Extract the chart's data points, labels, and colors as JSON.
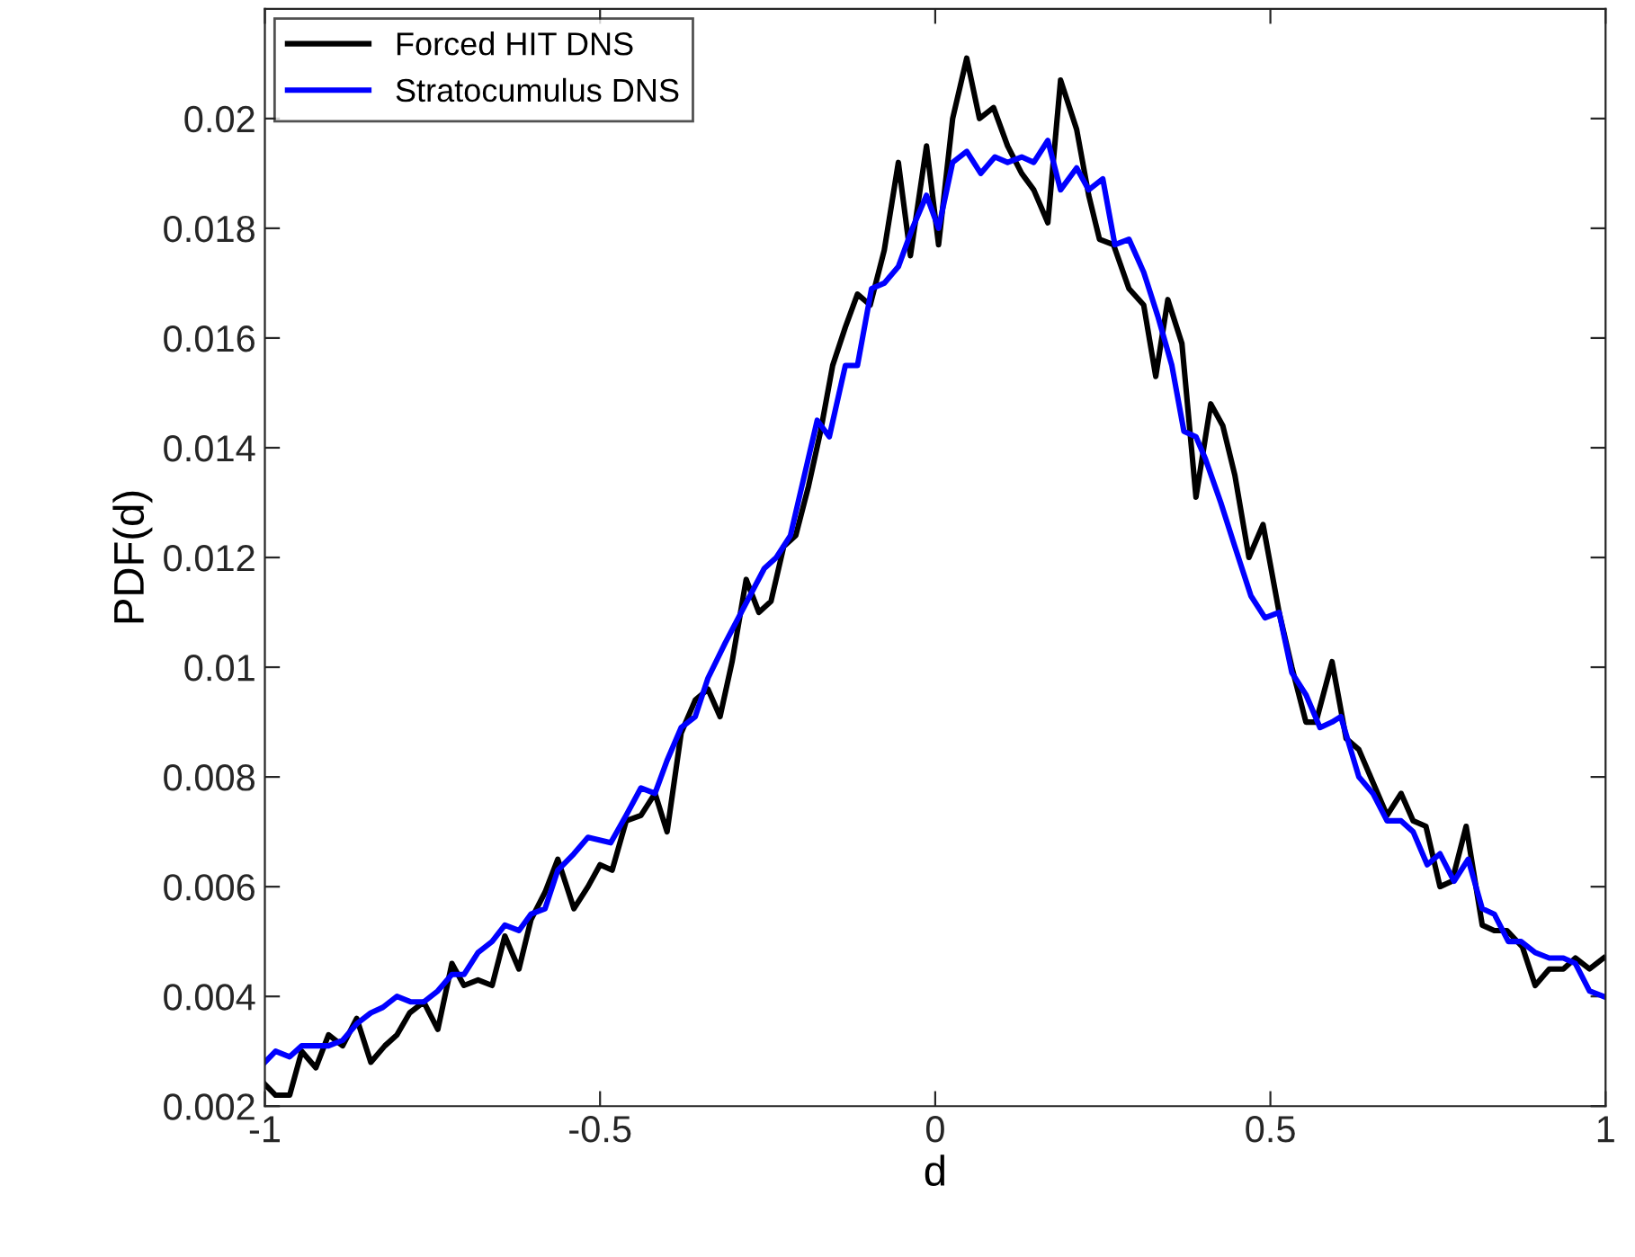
{
  "chart_data": {
    "type": "line",
    "xlabel": "d",
    "ylabel": "PDF(d)",
    "xlim": [
      -1,
      1
    ],
    "ylim": [
      0.002,
      0.022
    ],
    "xticks": [
      -1,
      -0.5,
      0,
      0.5,
      1
    ],
    "yticks": [
      0.002,
      0.004,
      0.006,
      0.008,
      0.01,
      0.012,
      0.014,
      0.016,
      0.018,
      0.02
    ],
    "grid": false,
    "legend": "top left",
    "marker": "none",
    "line_style": "solid",
    "series": [
      {
        "name": "Forced HIT DNS",
        "color": "#000000",
        "x": [
          -1.0,
          -0.984,
          -0.963,
          -0.945,
          -0.924,
          -0.905,
          -0.884,
          -0.863,
          -0.842,
          -0.821,
          -0.803,
          -0.784,
          -0.763,
          -0.742,
          -0.721,
          -0.703,
          -0.682,
          -0.661,
          -0.642,
          -0.621,
          -0.603,
          -0.582,
          -0.563,
          -0.539,
          -0.518,
          -0.5,
          -0.482,
          -0.461,
          -0.439,
          -0.418,
          -0.4,
          -0.379,
          -0.358,
          -0.339,
          -0.321,
          -0.303,
          -0.282,
          -0.263,
          -0.245,
          -0.226,
          -0.208,
          -0.189,
          -0.171,
          -0.153,
          -0.134,
          -0.116,
          -0.097,
          -0.076,
          -0.055,
          -0.037,
          -0.013,
          0.005,
          0.026,
          0.047,
          0.066,
          0.087,
          0.108,
          0.129,
          0.147,
          0.168,
          0.187,
          0.211,
          0.229,
          0.245,
          0.266,
          0.289,
          0.311,
          0.329,
          0.347,
          0.368,
          0.389,
          0.411,
          0.429,
          0.447,
          0.468,
          0.489,
          0.513,
          0.532,
          0.553,
          0.568,
          0.592,
          0.613,
          0.632,
          0.653,
          0.674,
          0.695,
          0.713,
          0.732,
          0.753,
          0.771,
          0.792,
          0.816,
          0.834,
          0.853,
          0.876,
          0.895,
          0.916,
          0.937,
          0.955,
          0.976,
          0.997
        ],
        "values": [
          0.0024,
          0.0022,
          0.0022,
          0.003,
          0.0027,
          0.0033,
          0.0031,
          0.0036,
          0.0028,
          0.0031,
          0.0033,
          0.0037,
          0.0039,
          0.0034,
          0.0046,
          0.0042,
          0.0043,
          0.0042,
          0.0051,
          0.0045,
          0.0054,
          0.0059,
          0.0065,
          0.0056,
          0.006,
          0.0064,
          0.0063,
          0.0072,
          0.0073,
          0.0077,
          0.007,
          0.0088,
          0.0094,
          0.0096,
          0.0091,
          0.0101,
          0.0116,
          0.011,
          0.0112,
          0.0122,
          0.0124,
          0.0133,
          0.0143,
          0.0155,
          0.0162,
          0.0168,
          0.0166,
          0.0176,
          0.0192,
          0.0175,
          0.0195,
          0.0177,
          0.02,
          0.0211,
          0.02,
          0.0202,
          0.0195,
          0.019,
          0.0187,
          0.0181,
          0.0207,
          0.0198,
          0.0186,
          0.0178,
          0.0177,
          0.0169,
          0.0166,
          0.0153,
          0.0167,
          0.0159,
          0.0131,
          0.0148,
          0.0144,
          0.0135,
          0.012,
          0.0126,
          0.011,
          0.01,
          0.009,
          0.009,
          0.0101,
          0.0087,
          0.0085,
          0.0079,
          0.0073,
          0.0077,
          0.0072,
          0.0071,
          0.006,
          0.0061,
          0.0071,
          0.0053,
          0.0052,
          0.0052,
          0.0049,
          0.0042,
          0.0045,
          0.0045,
          0.0047,
          0.0045,
          0.0047
        ]
      },
      {
        "name": "Stratocumulus DNS",
        "color": "#0000ff",
        "x": [
          -1.0,
          -0.984,
          -0.963,
          -0.945,
          -0.905,
          -0.884,
          -0.863,
          -0.842,
          -0.824,
          -0.803,
          -0.782,
          -0.763,
          -0.742,
          -0.721,
          -0.703,
          -0.682,
          -0.661,
          -0.642,
          -0.621,
          -0.603,
          -0.582,
          -0.563,
          -0.539,
          -0.518,
          -0.484,
          -0.461,
          -0.439,
          -0.418,
          -0.4,
          -0.379,
          -0.358,
          -0.339,
          -0.313,
          -0.255,
          -0.237,
          -0.216,
          -0.197,
          -0.176,
          -0.158,
          -0.134,
          -0.116,
          -0.095,
          -0.076,
          -0.055,
          -0.034,
          -0.013,
          0.005,
          0.026,
          0.047,
          0.068,
          0.089,
          0.108,
          0.129,
          0.147,
          0.168,
          0.187,
          0.211,
          0.229,
          0.25,
          0.268,
          0.289,
          0.311,
          0.332,
          0.353,
          0.371,
          0.389,
          0.403,
          0.426,
          0.447,
          0.471,
          0.492,
          0.513,
          0.532,
          0.553,
          0.574,
          0.592,
          0.605,
          0.632,
          0.653,
          0.674,
          0.695,
          0.713,
          0.734,
          0.753,
          0.774,
          0.795,
          0.816,
          0.834,
          0.855,
          0.874,
          0.895,
          0.916,
          0.937,
          0.955,
          0.976,
          0.997
        ],
        "values": [
          0.0028,
          0.003,
          0.0029,
          0.0031,
          0.0031,
          0.0032,
          0.0035,
          0.0037,
          0.0038,
          0.004,
          0.0039,
          0.0039,
          0.0041,
          0.0044,
          0.0044,
          0.0048,
          0.005,
          0.0053,
          0.0052,
          0.0055,
          0.0056,
          0.0063,
          0.0066,
          0.0069,
          0.0068,
          0.0073,
          0.0078,
          0.0077,
          0.0083,
          0.0089,
          0.0091,
          0.0098,
          0.01045,
          0.0118,
          0.012,
          0.0124,
          0.0134,
          0.0145,
          0.0142,
          0.0155,
          0.0155,
          0.0169,
          0.017,
          0.0173,
          0.018,
          0.0186,
          0.018,
          0.0192,
          0.0194,
          0.019,
          0.0193,
          0.0192,
          0.0193,
          0.0192,
          0.0196,
          0.0187,
          0.0191,
          0.0187,
          0.0189,
          0.0177,
          0.0178,
          0.0172,
          0.0164,
          0.0155,
          0.0143,
          0.0142,
          0.0138,
          0.013,
          0.0122,
          0.0113,
          0.0109,
          0.011,
          0.0099,
          0.0095,
          0.0089,
          0.009,
          0.0091,
          0.008,
          0.0077,
          0.0072,
          0.0072,
          0.007,
          0.0064,
          0.0066,
          0.0061,
          0.0065,
          0.0056,
          0.0055,
          0.005,
          0.005,
          0.0048,
          0.0047,
          0.0047,
          0.0046,
          0.0041,
          0.004
        ]
      }
    ]
  }
}
